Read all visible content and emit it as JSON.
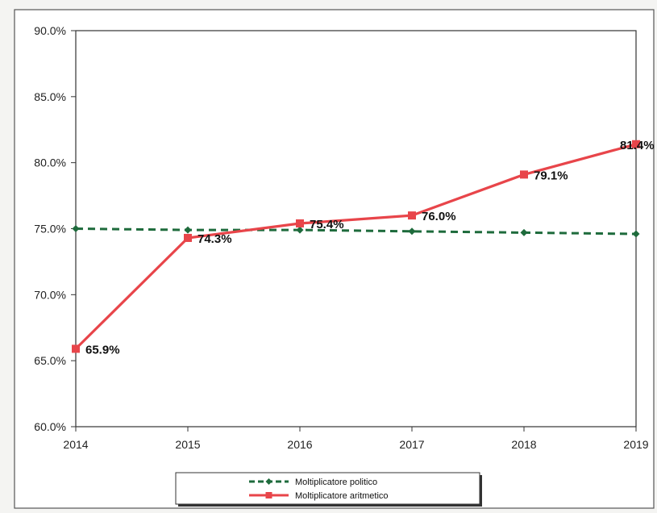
{
  "chart_data": {
    "type": "line",
    "title": "",
    "xlabel": "",
    "ylabel": "",
    "x": [
      "2014",
      "2015",
      "2016",
      "2017",
      "2018",
      "2019"
    ],
    "ylim": [
      0.6,
      0.9
    ],
    "yticks": [
      "60.0%",
      "65.0%",
      "70.0%",
      "75.0%",
      "80.0%",
      "85.0%",
      "90.0%"
    ],
    "grid": false,
    "legend_position": "bottom",
    "series": [
      {
        "name": "Moltiplicatore politico",
        "values": [
          0.75,
          0.749,
          0.749,
          0.748,
          0.747,
          0.746
        ],
        "color": "#1e6b3c",
        "style": "dashed",
        "marker": "diamond"
      },
      {
        "name": "Moltiplicatore aritmetico",
        "values": [
          0.659,
          0.743,
          0.754,
          0.76,
          0.791,
          0.814
        ],
        "labels": [
          "65.9%",
          "74.3%",
          "75.4%",
          "76.0%",
          "79.1%",
          "81.4%"
        ],
        "color": "#e8454a",
        "style": "solid",
        "marker": "square"
      }
    ]
  }
}
